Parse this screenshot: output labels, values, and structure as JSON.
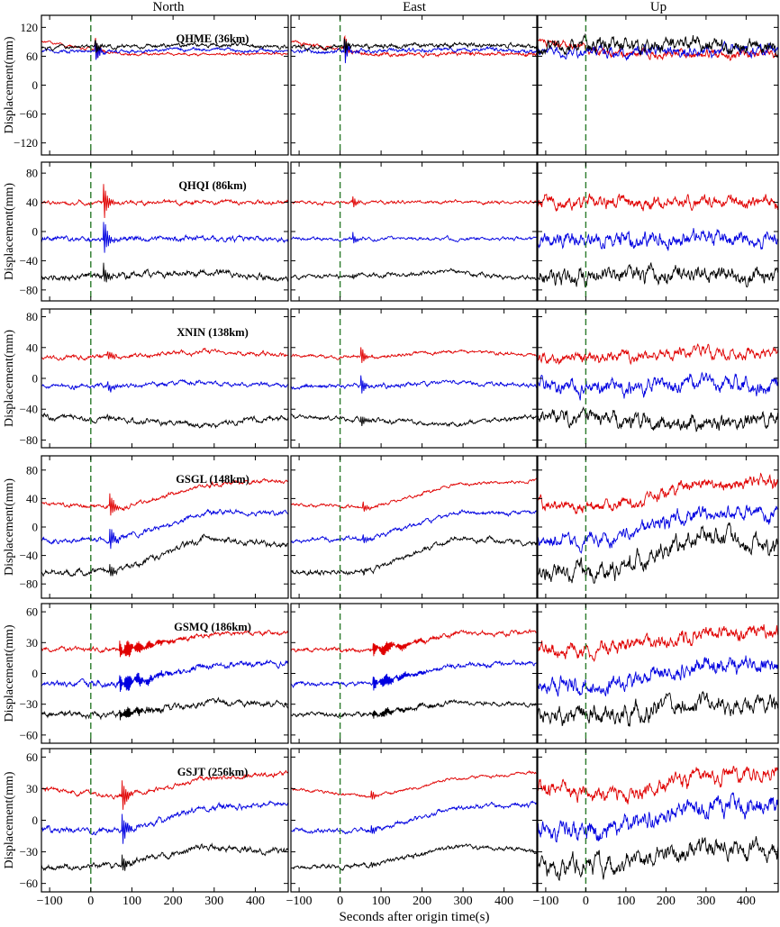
{
  "chart_data": {
    "type": "line",
    "columns": [
      "North",
      "East",
      "Up"
    ],
    "xlabel": "Seconds after origin time(s)",
    "ylabel": "Displacement(mm)",
    "xlim": [
      -120,
      480
    ],
    "x_ticks": [
      -100,
      0,
      100,
      200,
      300,
      400
    ],
    "x_tick_labels": [
      "−100",
      "0",
      "100",
      "200",
      "300",
      "400"
    ],
    "origin_marker_x": 0,
    "series_colors": [
      "#e00000",
      "#0000e0",
      "#000000"
    ],
    "marker_color": "#2a7a2a",
    "grid": false,
    "stations": [
      {
        "label": "QHME (36km)",
        "ylim": [
          -145,
          145
        ],
        "y_ticks": [
          120,
          60,
          0,
          -60,
          -120
        ],
        "y_tick_labels": [
          "120",
          "60",
          "0",
          "−60",
          "−120"
        ],
        "baselines": [
          [
            90,
            65,
            64,
            65
          ],
          [
            70,
            70,
            75,
            70
          ],
          [
            78,
            80,
            85,
            80
          ]
        ],
        "noise": [
          [
            4,
            6,
            12
          ],
          [
            5,
            6,
            16
          ],
          [
            6,
            7,
            20
          ]
        ],
        "spikes": [
          {
            "col": 0,
            "t": 10,
            "amp": 35,
            "width": 8,
            "ringing": 0.06
          },
          {
            "col": 1,
            "t": 10,
            "amp": 45,
            "width": 6,
            "ringing": 0.08
          }
        ]
      },
      {
        "label": "QHQI (86km)",
        "ylim": [
          -95,
          95
        ],
        "y_ticks": [
          80,
          40,
          0,
          -40,
          -80
        ],
        "y_tick_labels": [
          "80",
          "40",
          "0",
          "−40",
          "−80"
        ],
        "baselines": [
          [
            40,
            40,
            40,
            40
          ],
          [
            -10,
            -10,
            -10,
            -10
          ],
          [
            -62,
            -60,
            -55,
            -65
          ]
        ],
        "noise": [
          [
            4,
            3,
            12
          ],
          [
            5,
            3,
            14
          ],
          [
            6,
            4,
            15
          ]
        ],
        "spikes": [
          {
            "col": 0,
            "t": 30,
            "amp": 28,
            "width": 10,
            "ringing": 0.04
          },
          {
            "col": 1,
            "t": 30,
            "amp": 10,
            "width": 8,
            "ringing": 0.03
          }
        ]
      },
      {
        "label": "XNIN (138km)",
        "ylim": [
          -90,
          90
        ],
        "y_ticks": [
          80,
          40,
          0,
          -40,
          -80
        ],
        "y_tick_labels": [
          "80",
          "40",
          "0",
          "−40",
          "−80"
        ],
        "baselines": [
          [
            28,
            28,
            35,
            30
          ],
          [
            -10,
            -10,
            -5,
            -10
          ],
          [
            -48,
            -55,
            -60,
            -50
          ]
        ],
        "noise": [
          [
            4,
            3,
            10
          ],
          [
            4,
            4,
            14
          ],
          [
            5,
            4,
            14
          ]
        ],
        "spikes": [
          {
            "col": 0,
            "t": 40,
            "amp": 8,
            "width": 10,
            "ringing": 0.03
          },
          {
            "col": 1,
            "t": 50,
            "amp": 15,
            "width": 8,
            "ringing": 0.05
          }
        ]
      },
      {
        "label": "GSGL (148km)",
        "ylim": [
          -100,
          100
        ],
        "y_ticks": [
          80,
          40,
          0,
          -40,
          -80
        ],
        "y_tick_labels": [
          "80",
          "40",
          "0",
          "−40",
          "−80"
        ],
        "baselines": [
          [
            32,
            28,
            60,
            65
          ],
          [
            -20,
            -15,
            20,
            20
          ],
          [
            -65,
            -60,
            -15,
            -25
          ]
        ],
        "noise": [
          [
            4,
            3,
            12
          ],
          [
            5,
            4,
            14
          ],
          [
            6,
            5,
            18
          ]
        ],
        "spikes": [
          {
            "col": 0,
            "t": 45,
            "amp": 18,
            "width": 12,
            "ringing": 0.04
          },
          {
            "col": 1,
            "t": 55,
            "amp": 8,
            "width": 10,
            "ringing": 0.03
          }
        ]
      },
      {
        "label": "GSMQ (186km)",
        "ylim": [
          -68,
          68
        ],
        "y_ticks": [
          60,
          30,
          0,
          -30,
          -60
        ],
        "y_tick_labels": [
          "60",
          "30",
          "0",
          "−30",
          "−60"
        ],
        "baselines": [
          [
            24,
            22,
            38,
            40
          ],
          [
            -10,
            -10,
            8,
            10
          ],
          [
            -40,
            -40,
            -28,
            -30
          ]
        ],
        "noise": [
          [
            3,
            3,
            10
          ],
          [
            4,
            3,
            11
          ],
          [
            4,
            3,
            12
          ]
        ],
        "spikes": [
          {
            "col": 0,
            "t": 70,
            "amp": 10,
            "width": 60,
            "ringing": 0.35
          },
          {
            "col": 1,
            "t": 80,
            "amp": 8,
            "width": 60,
            "ringing": 0.4
          }
        ]
      },
      {
        "label": "GSJT (256km)",
        "ylim": [
          -68,
          68
        ],
        "y_ticks": [
          60,
          30,
          0,
          -30,
          -60
        ],
        "y_tick_labels": [
          "60",
          "30",
          "0",
          "−30",
          "−60"
        ],
        "baselines": [
          [
            30,
            22,
            40,
            45
          ],
          [
            -10,
            -10,
            12,
            15
          ],
          [
            -45,
            -42,
            -25,
            -30
          ]
        ],
        "noise": [
          [
            3,
            2,
            10
          ],
          [
            4,
            3,
            12
          ],
          [
            4,
            3,
            12
          ]
        ],
        "spikes": [
          {
            "col": 0,
            "t": 75,
            "amp": 18,
            "width": 10,
            "ringing": 0.05
          },
          {
            "col": 1,
            "t": 75,
            "amp": 6,
            "width": 8,
            "ringing": 0.03
          }
        ]
      }
    ]
  }
}
